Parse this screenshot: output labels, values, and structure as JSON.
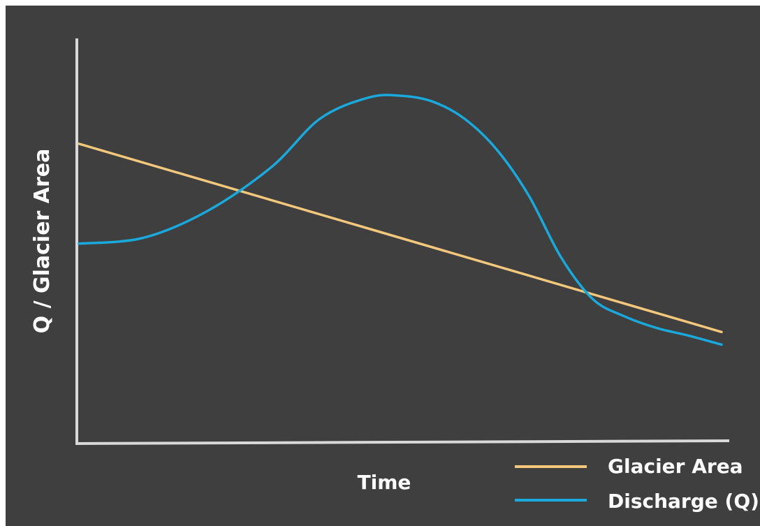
{
  "chart_data": {
    "type": "line",
    "title": "",
    "xlabel": "Time",
    "ylabel": "Q / Glacier Area",
    "xlim": [
      0,
      100
    ],
    "ylim": [
      0,
      100
    ],
    "grid": false,
    "legend_position": "bottom-right",
    "series": [
      {
        "name": "Glacier Area",
        "color": "#f3c77c",
        "x": [
          0,
          100
        ],
        "y": [
          77.5,
          28.5
        ]
      },
      {
        "name": "Discharge (Q)",
        "color": "#1aa9dc",
        "x": [
          0,
          10,
          20,
          30,
          37.5,
          45,
          50,
          55,
          60,
          65,
          70,
          75,
          80,
          85,
          90,
          95,
          100
        ],
        "y": [
          51.5,
          53,
          60,
          71.5,
          84,
          89.5,
          90,
          88.5,
          84,
          76,
          64,
          48,
          37,
          32.5,
          29.5,
          27.5,
          25.2
        ]
      }
    ]
  }
}
